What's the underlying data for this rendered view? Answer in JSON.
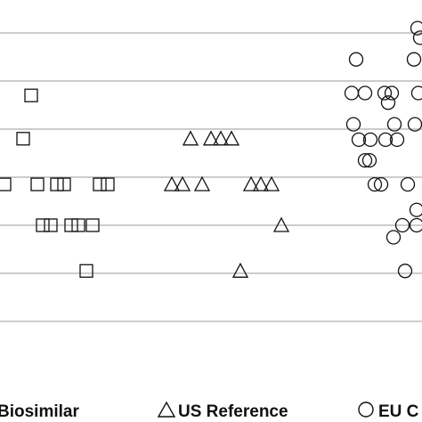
{
  "chart_data": {
    "type": "scatter",
    "title": "",
    "xlabel": "",
    "ylabel": "",
    "grid": true,
    "grid_y_values": [
      1,
      2,
      3,
      4,
      5,
      6,
      7
    ],
    "ylim": [
      0,
      7.5
    ],
    "xlim": [
      0,
      474
    ],
    "legend_position": "bottom",
    "colors": {
      "marker_stroke": "#111111",
      "grid": "#9a9a9a",
      "background": "#ffffff"
    },
    "series": [
      {
        "name": "Biosimilar",
        "symbol": "square",
        "points": [
          {
            "x": 35,
            "y": 5.7
          },
          {
            "x": 26,
            "y": 4.8
          },
          {
            "x": 5,
            "y": 3.85
          },
          {
            "x": 42,
            "y": 3.85
          },
          {
            "x": 64,
            "y": 3.85
          },
          {
            "x": 72,
            "y": 3.85
          },
          {
            "x": 112,
            "y": 3.85
          },
          {
            "x": 121,
            "y": 3.85
          },
          {
            "x": 48,
            "y": 3.0
          },
          {
            "x": 57,
            "y": 3.0
          },
          {
            "x": 80,
            "y": 3.0
          },
          {
            "x": 88,
            "y": 3.0
          },
          {
            "x": 104,
            "y": 3.0
          },
          {
            "x": 97,
            "y": 2.05
          }
        ]
      },
      {
        "name": "US Reference",
        "symbol": "triangle",
        "points": [
          {
            "x": 214,
            "y": 4.8
          },
          {
            "x": 237,
            "y": 4.8
          },
          {
            "x": 248,
            "y": 4.8
          },
          {
            "x": 260,
            "y": 4.8
          },
          {
            "x": 193,
            "y": 3.85
          },
          {
            "x": 205,
            "y": 3.85
          },
          {
            "x": 227,
            "y": 3.85
          },
          {
            "x": 282,
            "y": 3.85
          },
          {
            "x": 293,
            "y": 3.85
          },
          {
            "x": 305,
            "y": 3.85
          },
          {
            "x": 316,
            "y": 3.0
          },
          {
            "x": 270,
            "y": 2.05
          }
        ]
      },
      {
        "name": "EU C",
        "symbol": "circle",
        "points": [
          {
            "x": 469,
            "y": 7.1
          },
          {
            "x": 472,
            "y": 6.9
          },
          {
            "x": 400,
            "y": 6.45
          },
          {
            "x": 465,
            "y": 6.45
          },
          {
            "x": 395,
            "y": 5.75
          },
          {
            "x": 410,
            "y": 5.75
          },
          {
            "x": 432,
            "y": 5.75
          },
          {
            "x": 440,
            "y": 5.75
          },
          {
            "x": 436,
            "y": 5.55
          },
          {
            "x": 470,
            "y": 5.75
          },
          {
            "x": 397,
            "y": 5.1
          },
          {
            "x": 443,
            "y": 5.1
          },
          {
            "x": 466,
            "y": 5.1
          },
          {
            "x": 403,
            "y": 4.78
          },
          {
            "x": 416,
            "y": 4.78
          },
          {
            "x": 433,
            "y": 4.78
          },
          {
            "x": 446,
            "y": 4.78
          },
          {
            "x": 410,
            "y": 4.35
          },
          {
            "x": 415,
            "y": 4.35
          },
          {
            "x": 421,
            "y": 3.85
          },
          {
            "x": 428,
            "y": 3.85
          },
          {
            "x": 458,
            "y": 3.85
          },
          {
            "x": 468,
            "y": 3.32
          },
          {
            "x": 452,
            "y": 3.0
          },
          {
            "x": 468,
            "y": 3.0
          },
          {
            "x": 442,
            "y": 2.75
          },
          {
            "x": 455,
            "y": 2.05
          }
        ]
      }
    ]
  },
  "legend": {
    "biosimilar": "Biosimilar",
    "us_reference": "US Reference",
    "eu": "EU C"
  }
}
